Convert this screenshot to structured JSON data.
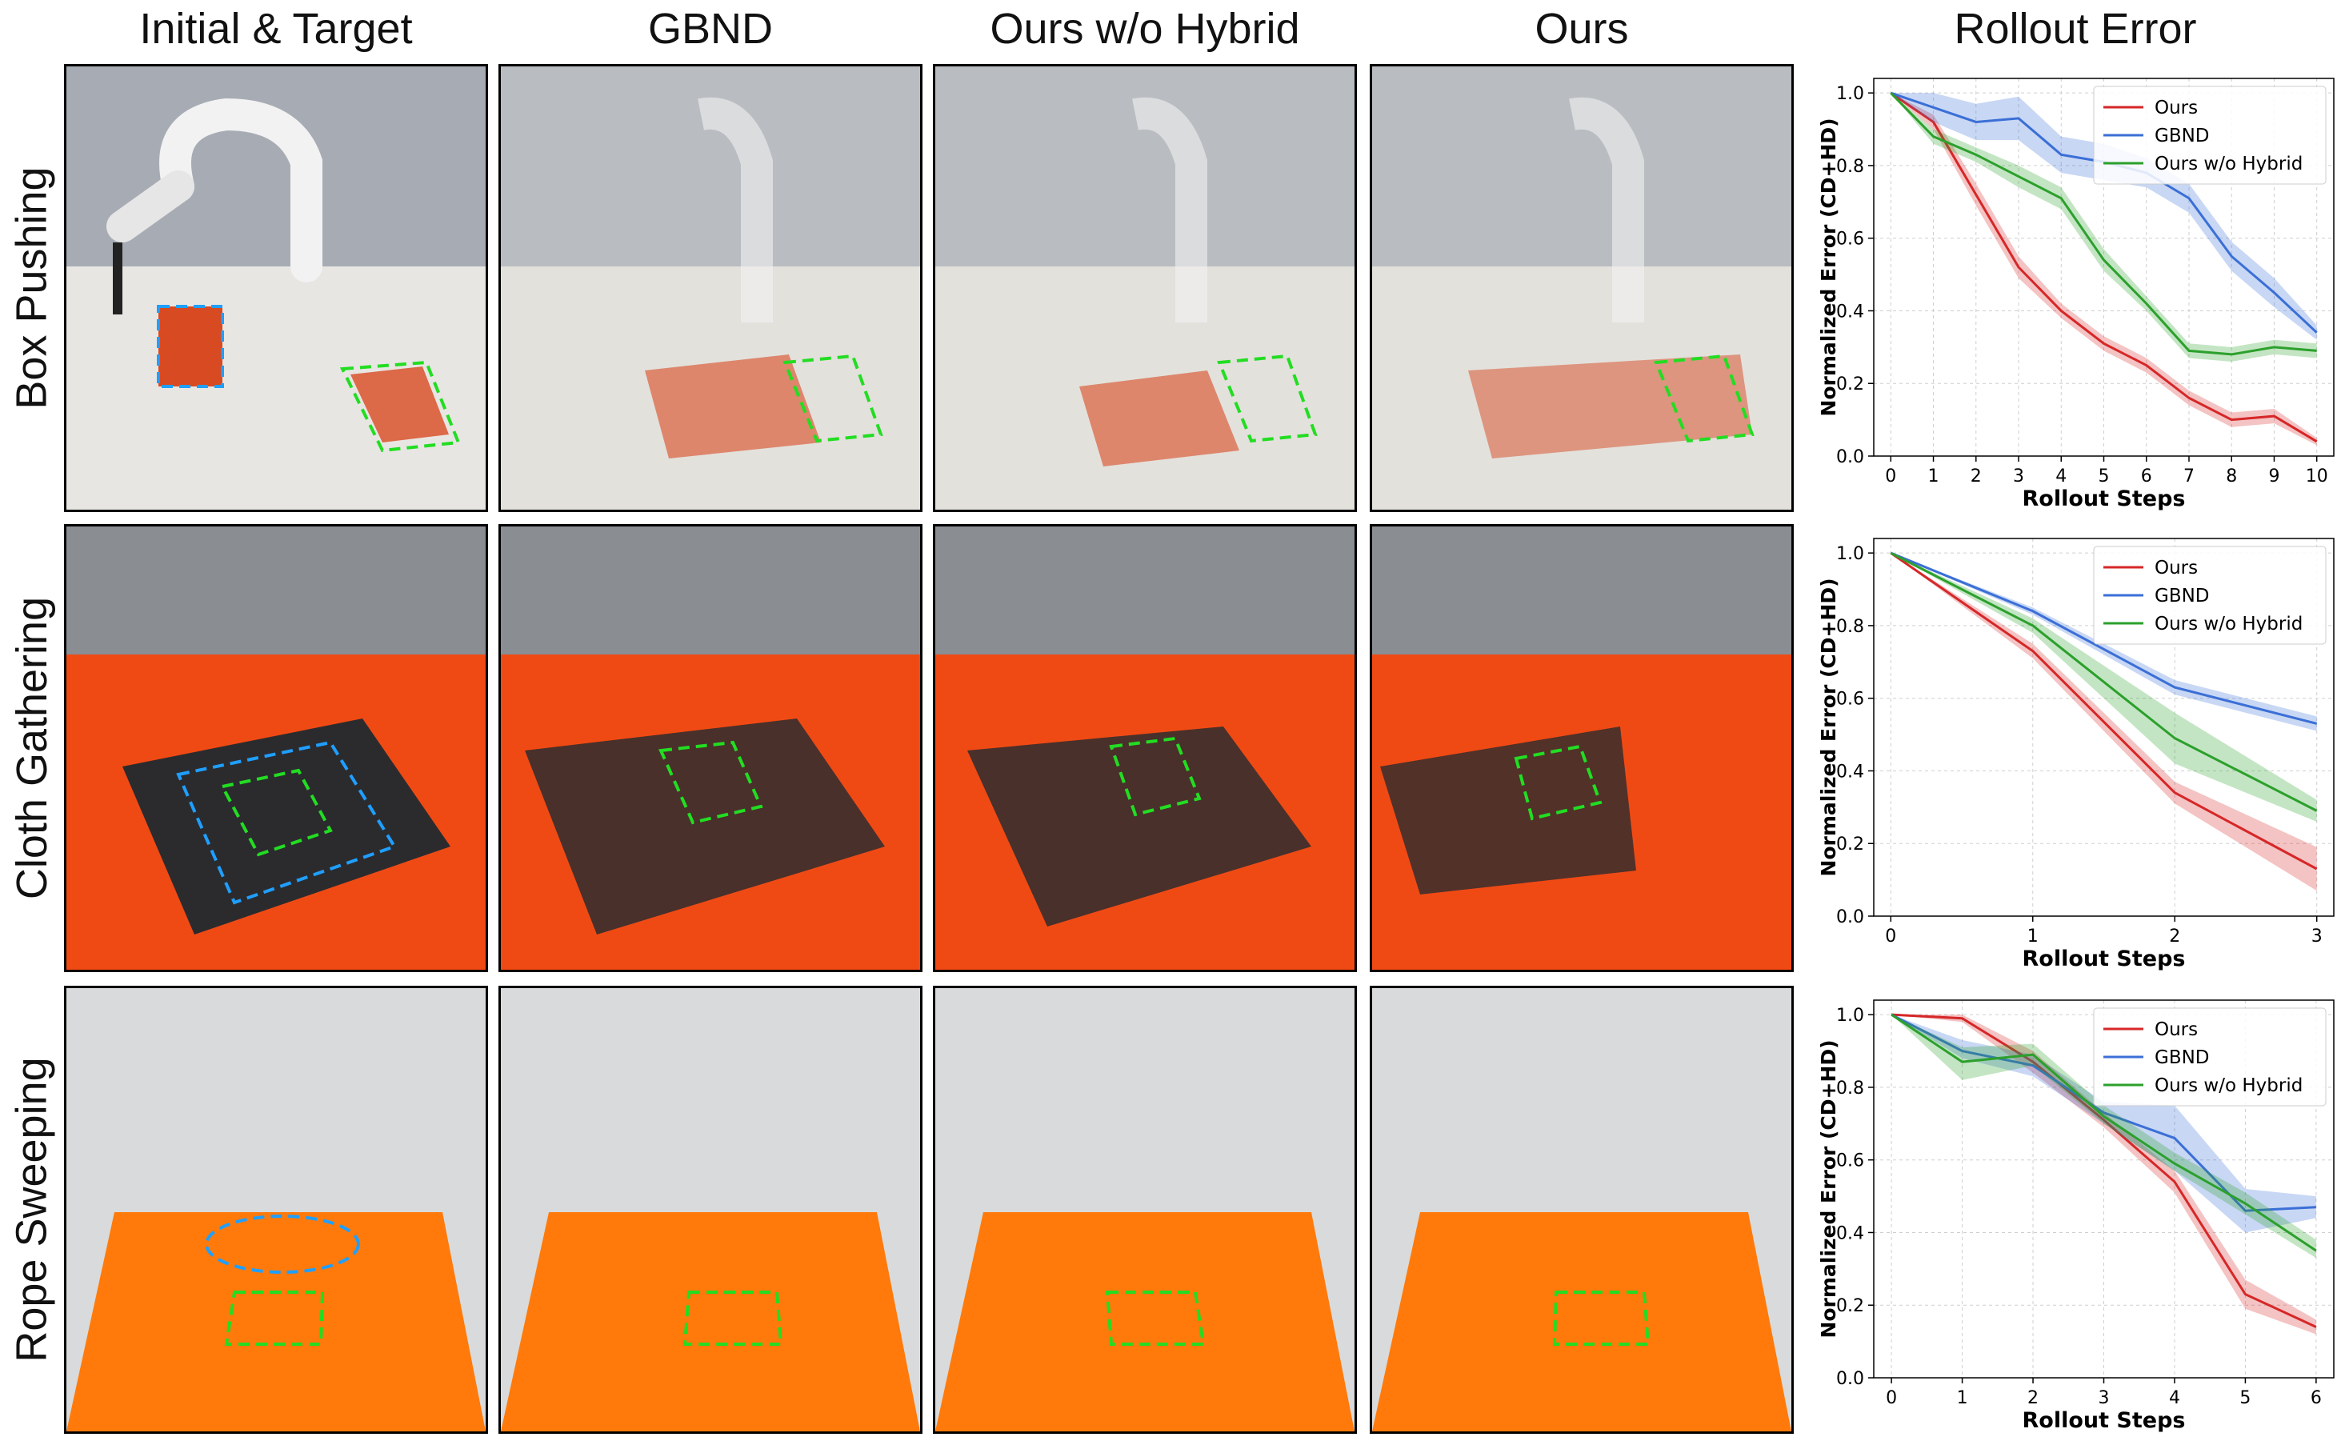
{
  "columns": [
    "Initial & Target",
    "GBND",
    "Ours w/o Hybrid",
    "Ours",
    "Rollout Error"
  ],
  "rows": [
    "Box Pushing",
    "Cloth Gathering",
    "Rope Sweeping"
  ],
  "colors": {
    "ours": "#d62728",
    "gbnd": "#3b6fd6",
    "hybrid": "#2ca02c",
    "target": "#22dd22",
    "initial": "#1f9fff"
  },
  "chart_data": [
    {
      "type": "line",
      "xlabel": "Rollout Steps",
      "ylabel": "Normalized Error (CD+HD)",
      "x": [
        0,
        1,
        2,
        3,
        4,
        5,
        6,
        7,
        8,
        9,
        10
      ],
      "xlim": [
        -0.4,
        10.4
      ],
      "ylim": [
        0,
        1.04
      ],
      "yticks": [
        0.0,
        0.2,
        0.4,
        0.6,
        0.8,
        1.0
      ],
      "grid": true,
      "legend": "top-right",
      "series": [
        {
          "name": "Ours",
          "key": "ours",
          "values": [
            1.0,
            0.92,
            0.72,
            0.52,
            0.4,
            0.31,
            0.25,
            0.16,
            0.1,
            0.11,
            0.04
          ],
          "lower": [
            1.0,
            0.9,
            0.69,
            0.49,
            0.38,
            0.29,
            0.23,
            0.14,
            0.08,
            0.09,
            0.03
          ],
          "upper": [
            1.0,
            0.94,
            0.75,
            0.55,
            0.42,
            0.33,
            0.27,
            0.18,
            0.12,
            0.13,
            0.05
          ]
        },
        {
          "name": "GBND",
          "key": "gbnd",
          "values": [
            1.0,
            0.96,
            0.92,
            0.93,
            0.83,
            0.81,
            0.78,
            0.71,
            0.55,
            0.45,
            0.34
          ],
          "lower": [
            1.0,
            0.92,
            0.87,
            0.87,
            0.78,
            0.76,
            0.74,
            0.67,
            0.51,
            0.41,
            0.32
          ],
          "upper": [
            1.0,
            1.0,
            0.97,
            0.99,
            0.88,
            0.86,
            0.82,
            0.75,
            0.59,
            0.49,
            0.36
          ]
        },
        {
          "name": "Ours w/o Hybrid",
          "key": "hybrid",
          "values": [
            1.0,
            0.88,
            0.83,
            0.77,
            0.71,
            0.54,
            0.42,
            0.29,
            0.28,
            0.3,
            0.29
          ],
          "lower": [
            1.0,
            0.86,
            0.81,
            0.74,
            0.68,
            0.51,
            0.4,
            0.27,
            0.26,
            0.28,
            0.27
          ],
          "upper": [
            1.0,
            0.9,
            0.85,
            0.8,
            0.74,
            0.57,
            0.44,
            0.31,
            0.3,
            0.32,
            0.31
          ]
        }
      ]
    },
    {
      "type": "line",
      "xlabel": "Rollout Steps",
      "ylabel": "Normalized Error (CD+HD)",
      "x": [
        0,
        1,
        2,
        3
      ],
      "xlim": [
        -0.12,
        3.12
      ],
      "ylim": [
        0,
        1.04
      ],
      "yticks": [
        0.0,
        0.2,
        0.4,
        0.6,
        0.8,
        1.0
      ],
      "grid": true,
      "legend": "top-right",
      "series": [
        {
          "name": "Ours",
          "key": "ours",
          "values": [
            1.0,
            0.73,
            0.34,
            0.13
          ],
          "lower": [
            1.0,
            0.71,
            0.31,
            0.07
          ],
          "upper": [
            1.0,
            0.75,
            0.37,
            0.19
          ]
        },
        {
          "name": "GBND",
          "key": "gbnd",
          "values": [
            1.0,
            0.84,
            0.63,
            0.53
          ],
          "lower": [
            1.0,
            0.83,
            0.61,
            0.51
          ],
          "upper": [
            1.0,
            0.85,
            0.65,
            0.55
          ]
        },
        {
          "name": "Ours w/o Hybrid",
          "key": "hybrid",
          "values": [
            1.0,
            0.8,
            0.49,
            0.29
          ],
          "lower": [
            1.0,
            0.78,
            0.42,
            0.26
          ],
          "upper": [
            1.0,
            0.82,
            0.56,
            0.32
          ]
        }
      ]
    },
    {
      "type": "line",
      "xlabel": "Rollout Steps",
      "ylabel": "Normalized Error (CD+HD)",
      "x": [
        0,
        1,
        2,
        3,
        4,
        5,
        6
      ],
      "xlim": [
        -0.25,
        6.25
      ],
      "ylim": [
        0,
        1.04
      ],
      "yticks": [
        0.0,
        0.2,
        0.4,
        0.6,
        0.8,
        1.0
      ],
      "grid": true,
      "legend": "top-right",
      "series": [
        {
          "name": "Ours",
          "key": "ours",
          "values": [
            1.0,
            0.99,
            0.87,
            0.71,
            0.54,
            0.23,
            0.14
          ],
          "lower": [
            1.0,
            0.98,
            0.84,
            0.69,
            0.51,
            0.19,
            0.12
          ],
          "upper": [
            1.0,
            1.0,
            0.9,
            0.73,
            0.57,
            0.27,
            0.16
          ]
        },
        {
          "name": "GBND",
          "key": "gbnd",
          "values": [
            1.0,
            0.9,
            0.86,
            0.73,
            0.66,
            0.46,
            0.47
          ],
          "lower": [
            1.0,
            0.88,
            0.83,
            0.7,
            0.57,
            0.4,
            0.44
          ],
          "upper": [
            1.0,
            0.93,
            0.89,
            0.76,
            0.75,
            0.52,
            0.5
          ]
        },
        {
          "name": "Ours w/o Hybrid",
          "key": "hybrid",
          "values": [
            1.0,
            0.87,
            0.89,
            0.72,
            0.59,
            0.48,
            0.35
          ],
          "lower": [
            1.0,
            0.82,
            0.86,
            0.7,
            0.57,
            0.45,
            0.33
          ],
          "upper": [
            1.0,
            0.91,
            0.92,
            0.75,
            0.62,
            0.51,
            0.38
          ]
        }
      ]
    }
  ]
}
